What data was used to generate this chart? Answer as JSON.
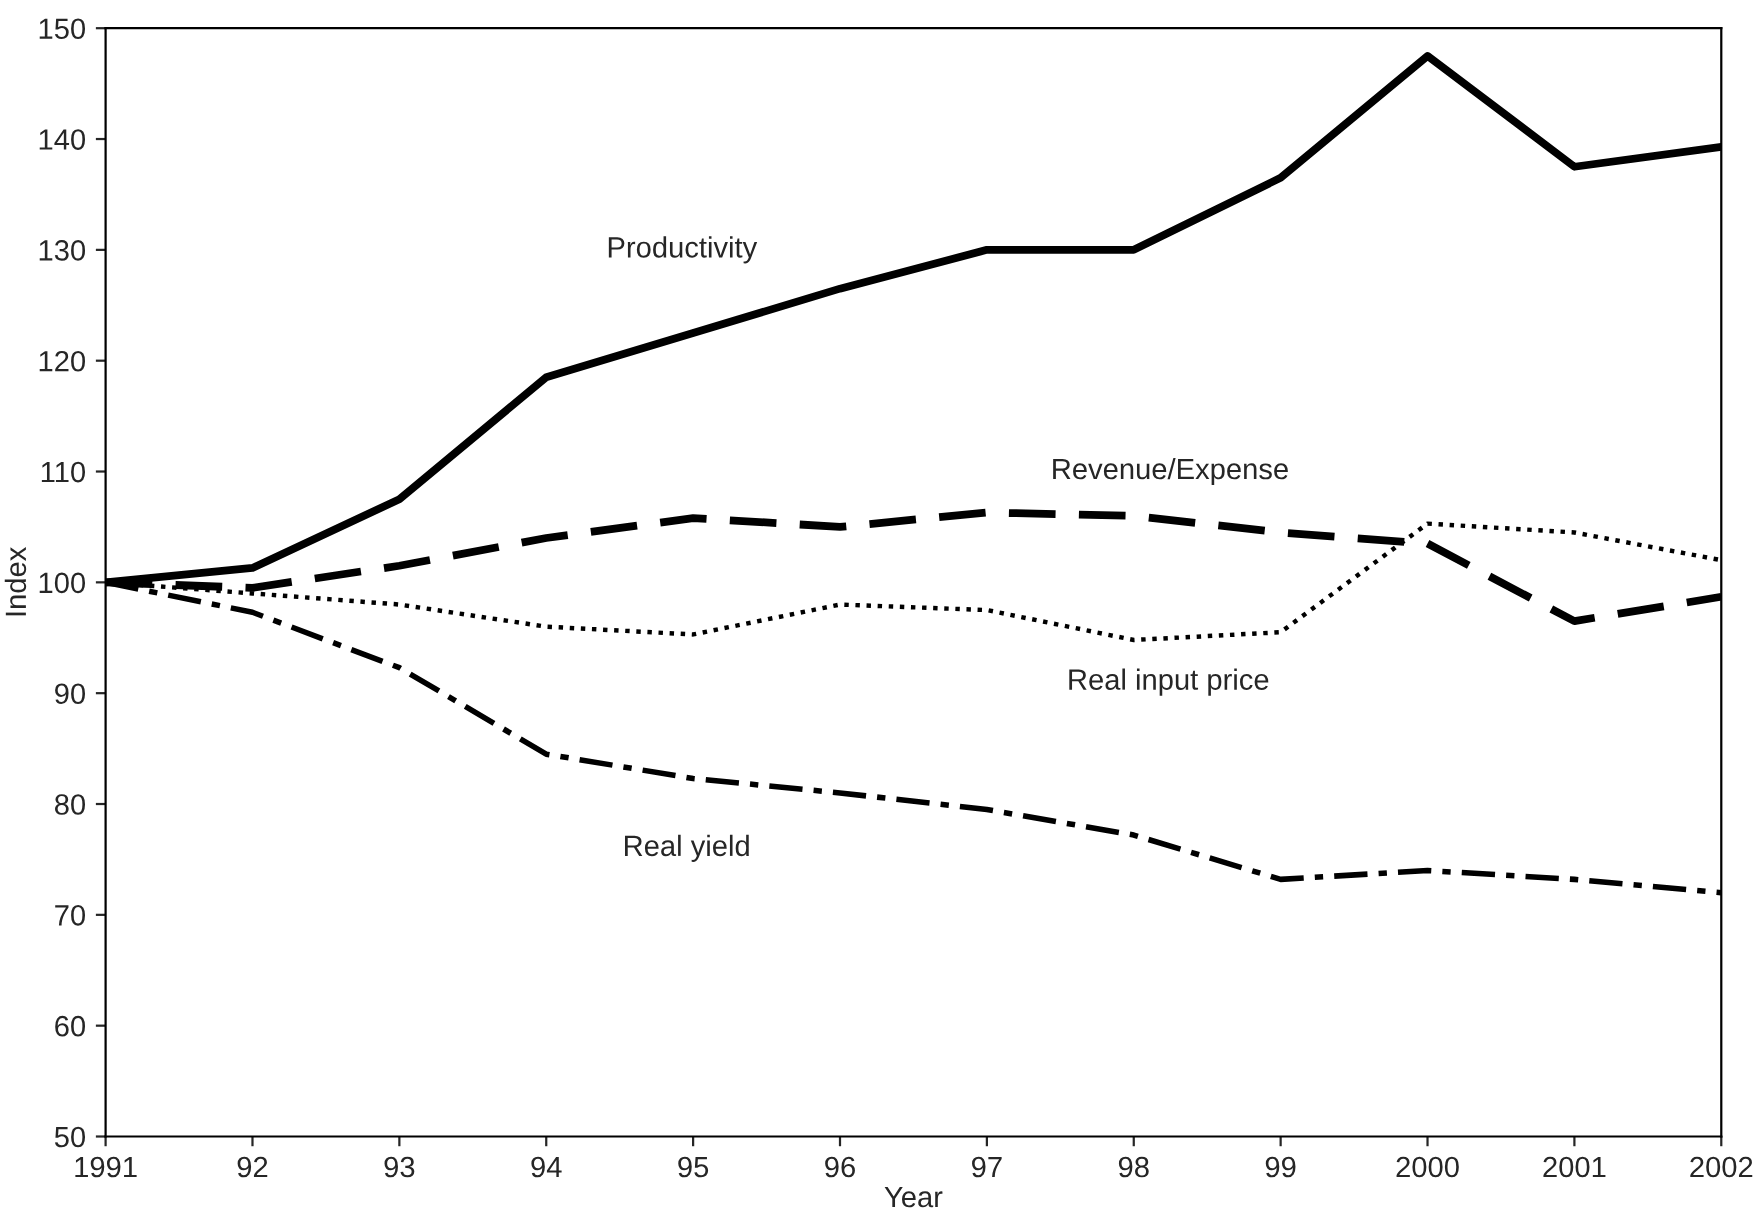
{
  "chart_data": {
    "type": "line",
    "xlabel": "Year",
    "ylabel": "Index",
    "x": [
      1991,
      1992,
      1993,
      1994,
      1995,
      1996,
      1997,
      1998,
      1999,
      2000,
      2001,
      2002
    ],
    "xlim": [
      1991,
      2002
    ],
    "xticks": [
      1991,
      {
        "value": 1992,
        "label": "92"
      },
      {
        "value": 1993,
        "label": "93"
      },
      {
        "value": 1994,
        "label": "94"
      },
      {
        "value": 1995,
        "label": "95"
      },
      {
        "value": 1996,
        "label": "96"
      },
      {
        "value": 1997,
        "label": "97"
      },
      {
        "value": 1998,
        "label": "98"
      },
      {
        "value": 1999,
        "label": "99"
      },
      2000,
      2001,
      2002
    ],
    "ylim": [
      50,
      150
    ],
    "yticks": [
      50,
      60,
      70,
      80,
      90,
      100,
      110,
      120,
      130,
      140,
      150
    ],
    "grid": false,
    "legend": false,
    "marker": "none",
    "series": [
      {
        "name": "Productivity",
        "color": "#000000",
        "line_style": "solid",
        "values": [
          100,
          101.3,
          107.5,
          118.5,
          122.5,
          126.5,
          130,
          130,
          136.5,
          147.5,
          137.5,
          139.3
        ]
      },
      {
        "name": "Revenue/Expense",
        "color": "#000000",
        "line_style": "dashed",
        "values": [
          100,
          99.5,
          101.5,
          104,
          105.8,
          105,
          106.3,
          106,
          104.5,
          103.5,
          96.5,
          98.7
        ]
      },
      {
        "name": "Real input price",
        "color": "#000000",
        "line_style": "dotted",
        "values": [
          100,
          99,
          98,
          96,
          95.3,
          98,
          97.5,
          94.8,
          95.5,
          105.3,
          104.5,
          102
        ]
      },
      {
        "name": "Real yield",
        "color": "#000000",
        "line_style": "dashdot",
        "values": [
          100,
          97.3,
          92.3,
          84.5,
          82.3,
          81,
          79.5,
          77.2,
          73.2,
          74,
          73.2,
          72
        ]
      }
    ]
  }
}
